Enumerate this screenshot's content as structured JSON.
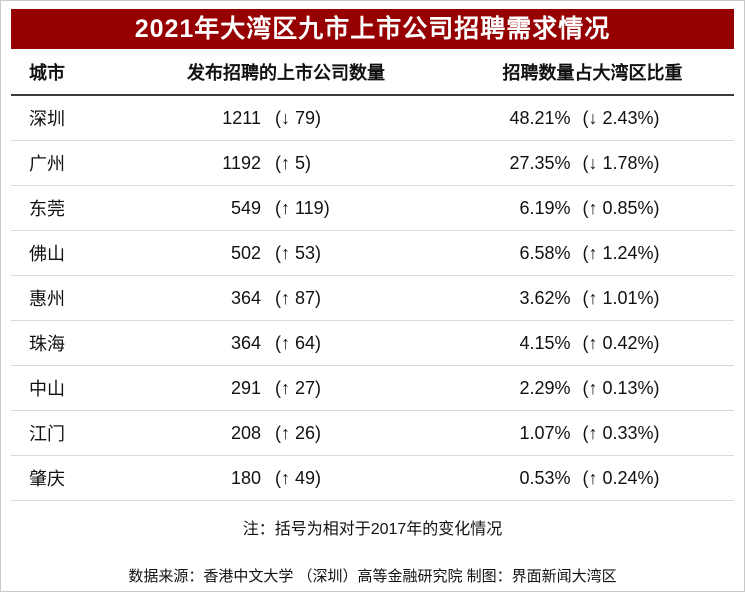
{
  "title": "2021年大湾区九市上市公司招聘需求情况",
  "colors": {
    "title_bg": "#960000",
    "title_text": "#ffffff",
    "header_rule": "#3a3a3a",
    "row_rule": "#d9d9d9"
  },
  "table": {
    "headers": [
      "城市",
      "发布招聘的上市公司数量",
      "招聘数量占大湾区比重"
    ],
    "rows": [
      {
        "city": "深圳",
        "count": "1211",
        "count_change": "(↓ 79)",
        "share": "48.21%",
        "share_change": "(↓ 2.43%)"
      },
      {
        "city": "广州",
        "count": "1192",
        "count_change": "(↑ 5)",
        "share": "27.35%",
        "share_change": "(↓ 1.78%)"
      },
      {
        "city": "东莞",
        "count": "549",
        "count_change": "(↑ 119)",
        "share": "6.19%",
        "share_change": "(↑ 0.85%)"
      },
      {
        "city": "佛山",
        "count": "502",
        "count_change": "(↑ 53)",
        "share": "6.58%",
        "share_change": "(↑ 1.24%)"
      },
      {
        "city": "惠州",
        "count": "364",
        "count_change": "(↑ 87)",
        "share": "3.62%",
        "share_change": "(↑ 1.01%)"
      },
      {
        "city": "珠海",
        "count": "364",
        "count_change": "(↑ 64)",
        "share": "4.15%",
        "share_change": "(↑ 0.42%)"
      },
      {
        "city": "中山",
        "count": "291",
        "count_change": "(↑ 27)",
        "share": "2.29%",
        "share_change": "(↑ 0.13%)"
      },
      {
        "city": "江门",
        "count": "208",
        "count_change": "(↑ 26)",
        "share": "1.07%",
        "share_change": "(↑ 0.33%)"
      },
      {
        "city": "肇庆",
        "count": "180",
        "count_change": "(↑ 49)",
        "share": "0.53%",
        "share_change": "(↑ 0.24%)"
      }
    ]
  },
  "note": "注：括号为相对于2017年的变化情况",
  "source": "数据来源：香港中文大学 （深圳）高等金融研究院 制图：界面新闻大湾区",
  "chart_data": {
    "type": "table",
    "title": "2021年大湾区九市上市公司招聘需求情况",
    "columns": [
      "城市",
      "发布招聘的上市公司数量",
      "招聘数量占大湾区比重"
    ],
    "rows": [
      {
        "city": "深圳",
        "companies": 1211,
        "companies_change_vs_2017": -79,
        "share_pct": 48.21,
        "share_change_pct_vs_2017": -2.43
      },
      {
        "city": "广州",
        "companies": 1192,
        "companies_change_vs_2017": 5,
        "share_pct": 27.35,
        "share_change_pct_vs_2017": -1.78
      },
      {
        "city": "东莞",
        "companies": 549,
        "companies_change_vs_2017": 119,
        "share_pct": 6.19,
        "share_change_pct_vs_2017": 0.85
      },
      {
        "city": "佛山",
        "companies": 502,
        "companies_change_vs_2017": 53,
        "share_pct": 6.58,
        "share_change_pct_vs_2017": 1.24
      },
      {
        "city": "惠州",
        "companies": 364,
        "companies_change_vs_2017": 87,
        "share_pct": 3.62,
        "share_change_pct_vs_2017": 1.01
      },
      {
        "city": "珠海",
        "companies": 364,
        "companies_change_vs_2017": 64,
        "share_pct": 4.15,
        "share_change_pct_vs_2017": 0.42
      },
      {
        "city": "中山",
        "companies": 291,
        "companies_change_vs_2017": 27,
        "share_pct": 2.29,
        "share_change_pct_vs_2017": 0.13
      },
      {
        "city": "江门",
        "companies": 208,
        "companies_change_vs_2017": 26,
        "share_pct": 1.07,
        "share_change_pct_vs_2017": 0.33
      },
      {
        "city": "肇庆",
        "companies": 180,
        "companies_change_vs_2017": 49,
        "share_pct": 0.53,
        "share_change_pct_vs_2017": 0.24
      }
    ],
    "note": "注：括号为相对于2017年的变化情况",
    "source": "数据来源：香港中文大学 （深圳）高等金融研究院 制图：界面新闻大湾区"
  }
}
